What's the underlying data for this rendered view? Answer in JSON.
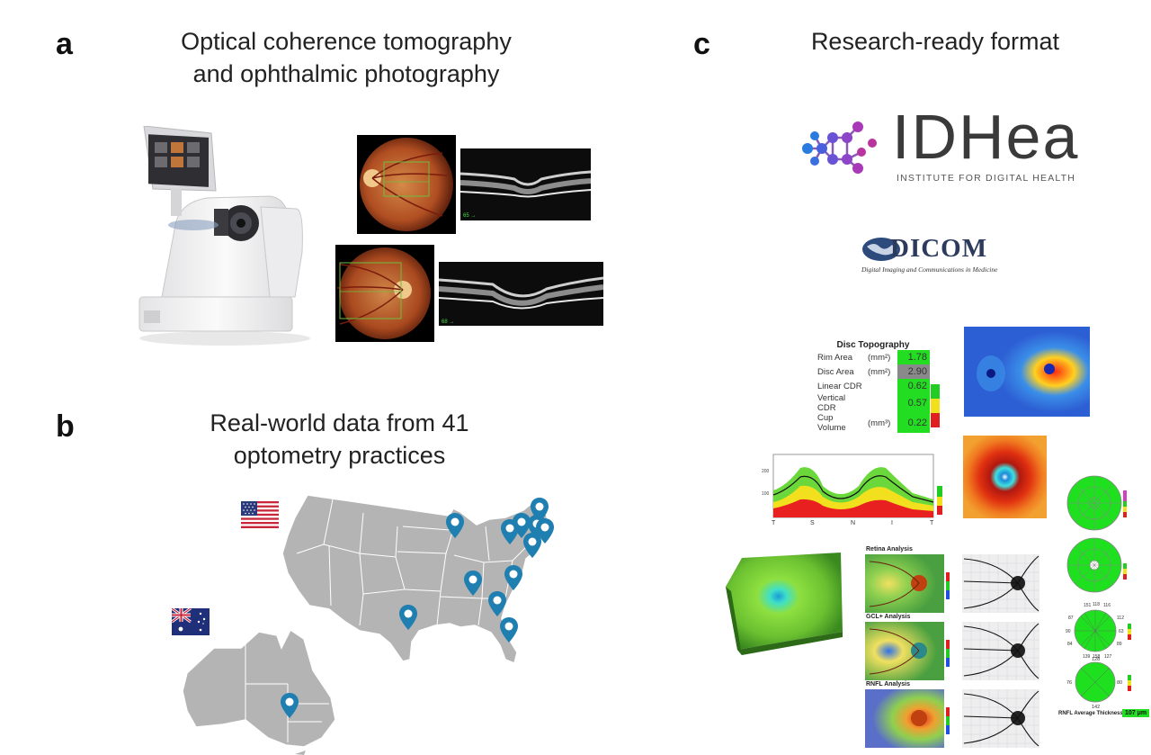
{
  "panel_a": {
    "letter": "a",
    "title_line1": "Optical coherence tomography",
    "title_line2": "and ophthalmic photography",
    "oct_label_1": "65 →",
    "oct_label_2": "68 →"
  },
  "panel_b": {
    "letter": "b",
    "title_line1": "Real-world data from 41",
    "title_line2": "optometry practices"
  },
  "panel_c": {
    "letter": "c",
    "title": "Research-ready format",
    "idhea_logo_text": "IDHea",
    "idhea_subtitle": "INSTITUTE FOR DIGITAL HEALTH",
    "dicom_logo_text": "DICOM",
    "dicom_subtitle": "Digital Imaging and Communications in Medicine",
    "disc_topography": {
      "title": "Disc Topography",
      "rows": [
        {
          "label": "Rim Area",
          "unit": "(mm²)",
          "value": "1.78"
        },
        {
          "label": "Disc Area",
          "unit": "(mm²)",
          "value": "2.90"
        },
        {
          "label": "Linear CDR",
          "unit": "",
          "value": "0.62"
        },
        {
          "label": "Vertical CDR",
          "unit": "",
          "value": "0.57"
        },
        {
          "label": "Cup Volume",
          "unit": "(mm³)",
          "value": "0.22"
        }
      ]
    },
    "tsnit_axis": [
      "T",
      "S",
      "N",
      "I",
      "T"
    ],
    "tsnit_y_ticks": [
      "200",
      "100"
    ],
    "retina_label": "Retina Analysis",
    "gcl_label": "GCL+ Analysis",
    "rnfl_label": "RNFL Analysis",
    "rnfl_avg_label": "RNFL Average Thickness",
    "rnfl_avg_value": "107 μm",
    "clock_values": [
      "151",
      "118",
      "116",
      "87",
      "112",
      "90",
      "63",
      "84",
      "89",
      "139",
      "158",
      "127"
    ],
    "quadrant_values": [
      "128",
      "76",
      "80",
      "142"
    ]
  }
}
